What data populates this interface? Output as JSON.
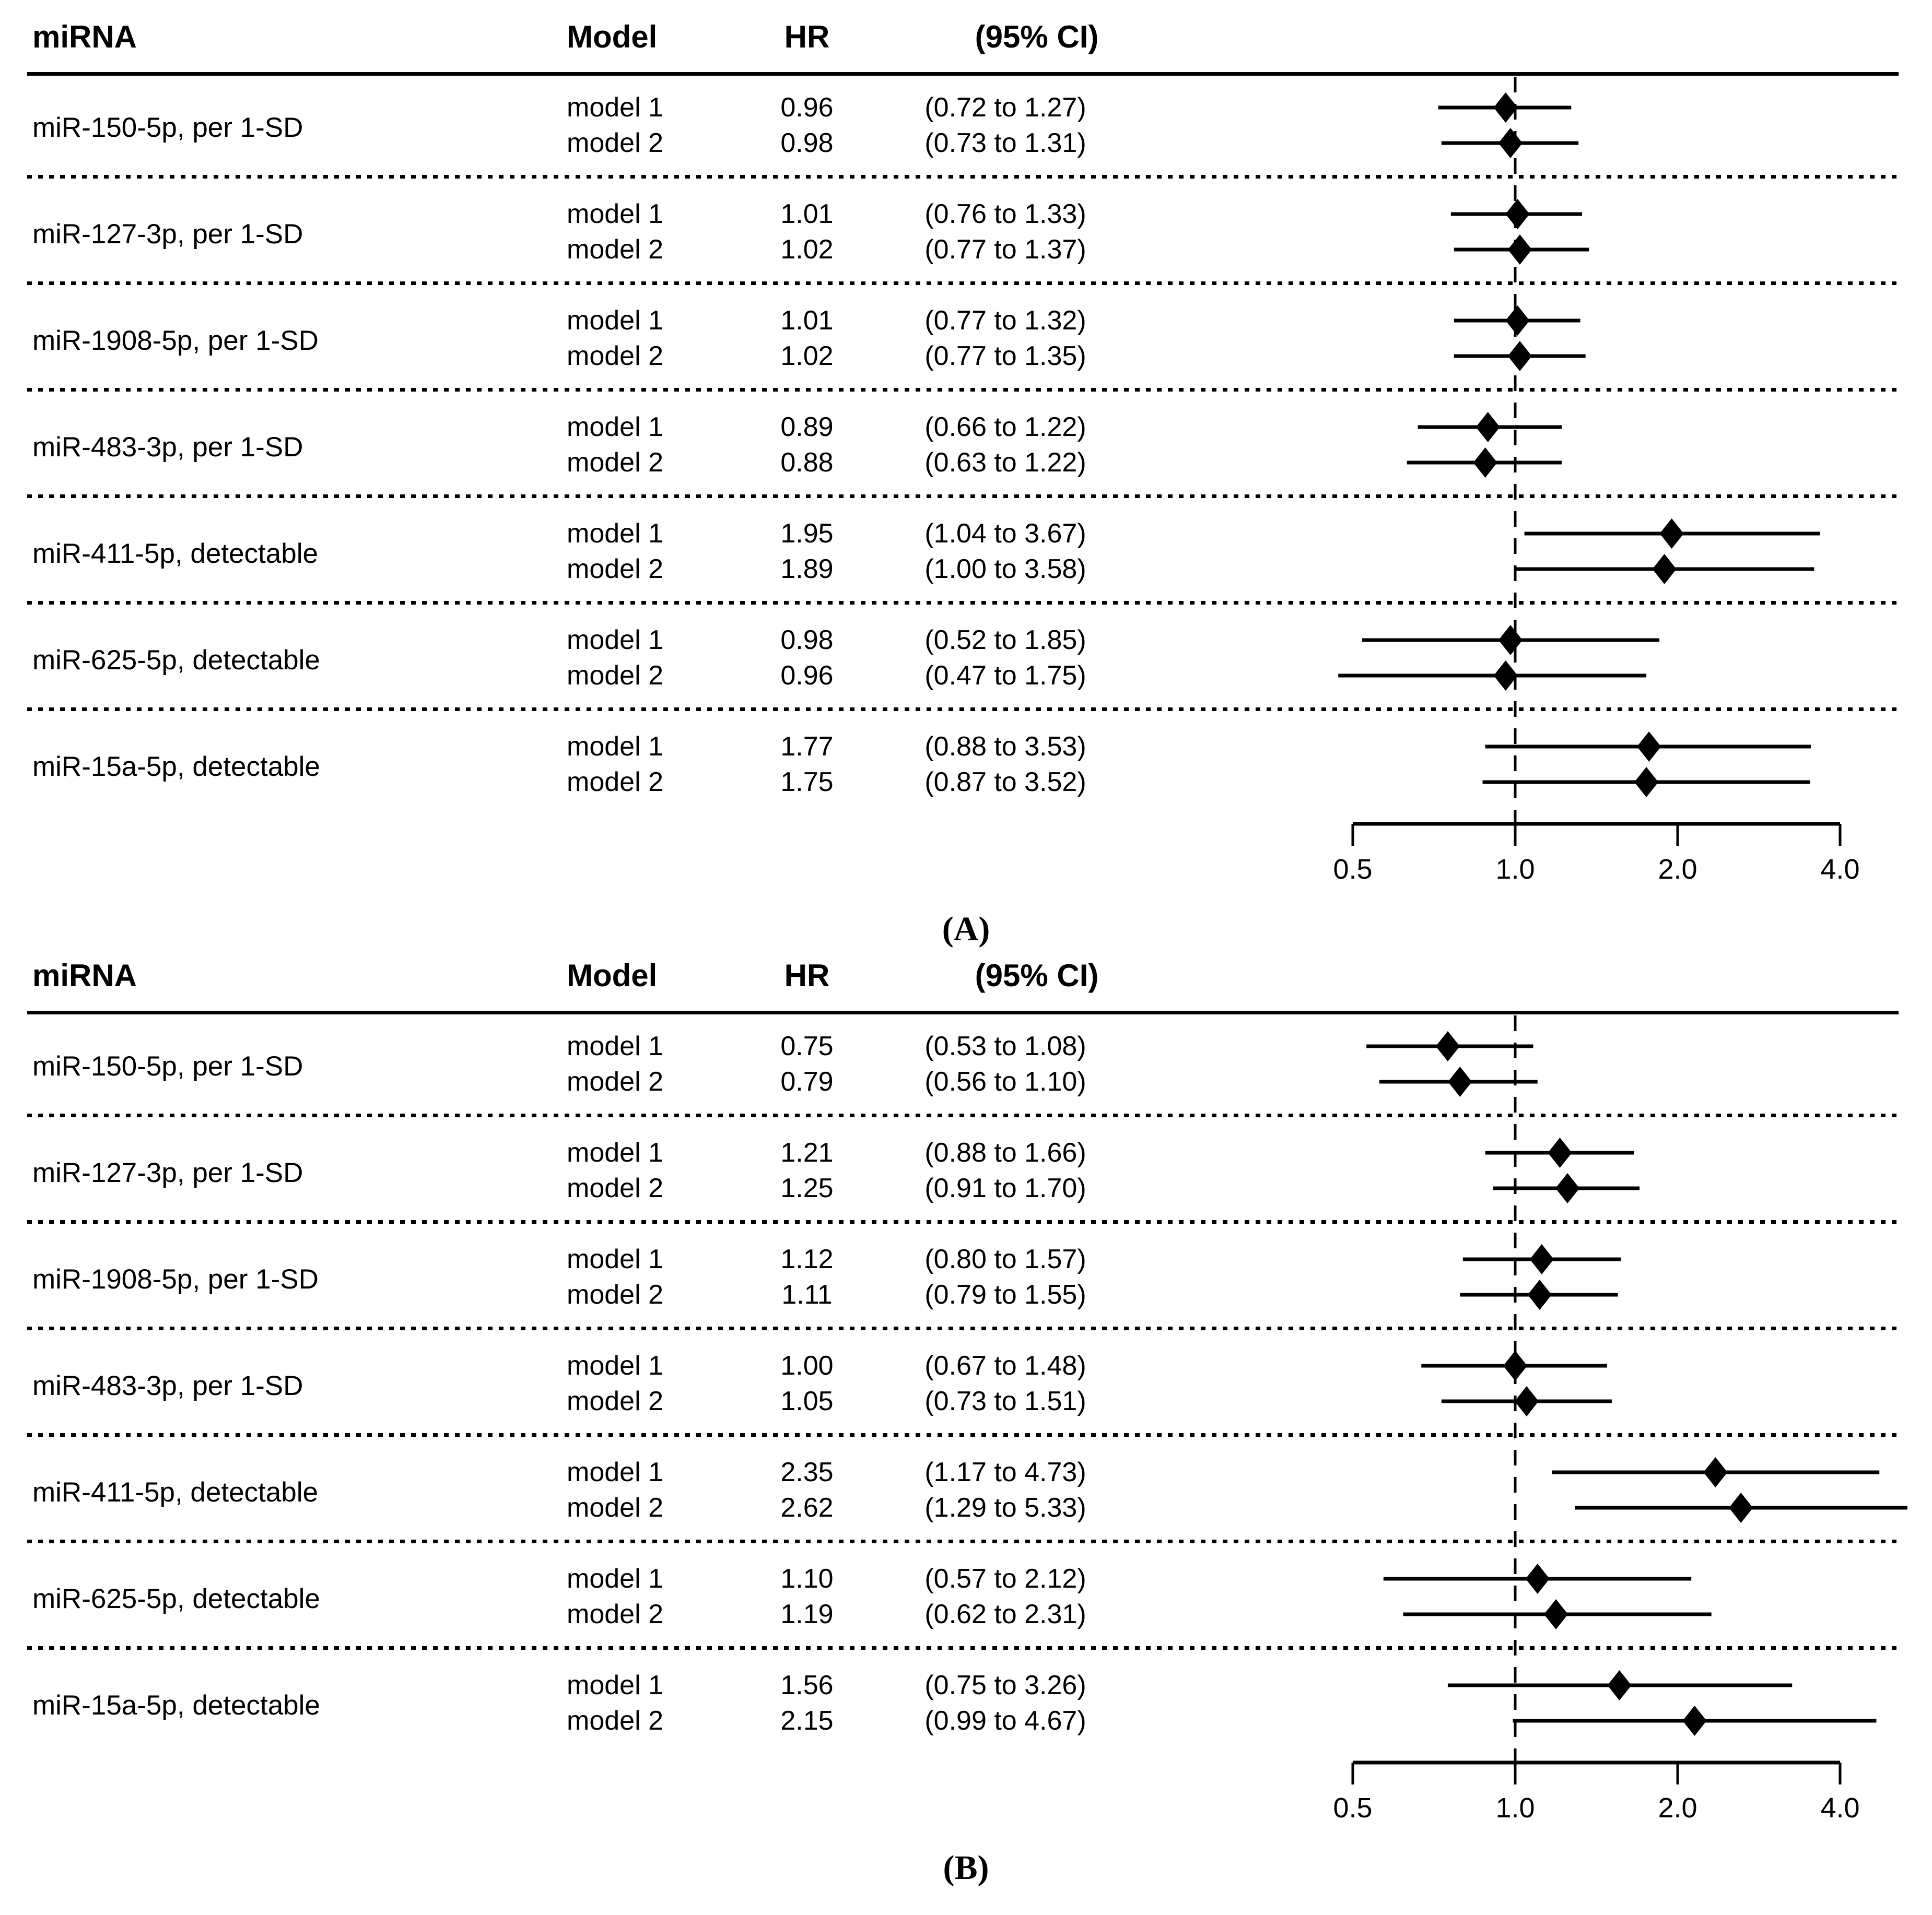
{
  "colors": {
    "ink": "#000000",
    "background": "#ffffff"
  },
  "columns": {
    "mirna": "miRNA",
    "model": "Model",
    "hr": "HR",
    "ci": "(95% CI)"
  },
  "axis": {
    "scale": "log2",
    "ticks": [
      0.5,
      1.0,
      2.0,
      4.0
    ],
    "tick_labels": [
      "0.5",
      "1.0",
      "2.0",
      "4.0"
    ],
    "reference_line": 1.0
  },
  "chart_data": {
    "type": "forest",
    "title": "",
    "xlabel": "",
    "xlim": [
      0.5,
      4.0
    ],
    "panels": [
      {
        "label": "(A)",
        "groups": [
          {
            "mirna": "miR-150-5p, per 1-SD",
            "models": [
              {
                "model": "model 1",
                "hr": 0.96,
                "hr_text": "0.96",
                "lo": 0.72,
                "hi": 1.27,
                "ci_text": "(0.72 to 1.27)"
              },
              {
                "model": "model 2",
                "hr": 0.98,
                "hr_text": "0.98",
                "lo": 0.73,
                "hi": 1.31,
                "ci_text": "(0.73 to 1.31)"
              }
            ]
          },
          {
            "mirna": "miR-127-3p, per 1-SD",
            "models": [
              {
                "model": "model 1",
                "hr": 1.01,
                "hr_text": "1.01",
                "lo": 0.76,
                "hi": 1.33,
                "ci_text": "(0.76 to 1.33)"
              },
              {
                "model": "model 2",
                "hr": 1.02,
                "hr_text": "1.02",
                "lo": 0.77,
                "hi": 1.37,
                "ci_text": "(0.77 to 1.37)"
              }
            ]
          },
          {
            "mirna": "miR-1908-5p, per 1-SD",
            "models": [
              {
                "model": "model 1",
                "hr": 1.01,
                "hr_text": "1.01",
                "lo": 0.77,
                "hi": 1.32,
                "ci_text": "(0.77 to 1.32)"
              },
              {
                "model": "model 2",
                "hr": 1.02,
                "hr_text": "1.02",
                "lo": 0.77,
                "hi": 1.35,
                "ci_text": "(0.77 to 1.35)"
              }
            ]
          },
          {
            "mirna": "miR-483-3p, per 1-SD",
            "models": [
              {
                "model": "model 1",
                "hr": 0.89,
                "hr_text": "0.89",
                "lo": 0.66,
                "hi": 1.22,
                "ci_text": "(0.66 to 1.22)"
              },
              {
                "model": "model 2",
                "hr": 0.88,
                "hr_text": "0.88",
                "lo": 0.63,
                "hi": 1.22,
                "ci_text": "(0.63 to 1.22)"
              }
            ]
          },
          {
            "mirna": "miR-411-5p, detectable",
            "models": [
              {
                "model": "model 1",
                "hr": 1.95,
                "hr_text": "1.95",
                "lo": 1.04,
                "hi": 3.67,
                "ci_text": "(1.04 to 3.67)"
              },
              {
                "model": "model 2",
                "hr": 1.89,
                "hr_text": "1.89",
                "lo": 1.0,
                "hi": 3.58,
                "ci_text": "(1.00 to 3.58)"
              }
            ]
          },
          {
            "mirna": "miR-625-5p, detectable",
            "models": [
              {
                "model": "model 1",
                "hr": 0.98,
                "hr_text": "0.98",
                "lo": 0.52,
                "hi": 1.85,
                "ci_text": "(0.52 to 1.85)"
              },
              {
                "model": "model 2",
                "hr": 0.96,
                "hr_text": "0.96",
                "lo": 0.47,
                "hi": 1.75,
                "ci_text": "(0.47 to 1.75)"
              }
            ]
          },
          {
            "mirna": "miR-15a-5p, detectable",
            "models": [
              {
                "model": "model 1",
                "hr": 1.77,
                "hr_text": "1.77",
                "lo": 0.88,
                "hi": 3.53,
                "ci_text": "(0.88 to 3.53)"
              },
              {
                "model": "model 2",
                "hr": 1.75,
                "hr_text": "1.75",
                "lo": 0.87,
                "hi": 3.52,
                "ci_text": "(0.87 to 3.52)"
              }
            ]
          }
        ]
      },
      {
        "label": "(B)",
        "groups": [
          {
            "mirna": "miR-150-5p, per 1-SD",
            "models": [
              {
                "model": "model 1",
                "hr": 0.75,
                "hr_text": "0.75",
                "lo": 0.53,
                "hi": 1.08,
                "ci_text": "(0.53 to 1.08)"
              },
              {
                "model": "model 2",
                "hr": 0.79,
                "hr_text": "0.79",
                "lo": 0.56,
                "hi": 1.1,
                "ci_text": "(0.56 to 1.10)"
              }
            ]
          },
          {
            "mirna": "miR-127-3p, per 1-SD",
            "models": [
              {
                "model": "model 1",
                "hr": 1.21,
                "hr_text": "1.21",
                "lo": 0.88,
                "hi": 1.66,
                "ci_text": "(0.88 to 1.66)"
              },
              {
                "model": "model 2",
                "hr": 1.25,
                "hr_text": "1.25",
                "lo": 0.91,
                "hi": 1.7,
                "ci_text": "(0.91 to 1.70)"
              }
            ]
          },
          {
            "mirna": "miR-1908-5p, per 1-SD",
            "models": [
              {
                "model": "model 1",
                "hr": 1.12,
                "hr_text": "1.12",
                "lo": 0.8,
                "hi": 1.57,
                "ci_text": "(0.80 to 1.57)"
              },
              {
                "model": "model 2",
                "hr": 1.11,
                "hr_text": "1.11",
                "lo": 0.79,
                "hi": 1.55,
                "ci_text": "(0.79 to 1.55)"
              }
            ]
          },
          {
            "mirna": "miR-483-3p, per 1-SD",
            "models": [
              {
                "model": "model 1",
                "hr": 1.0,
                "hr_text": "1.00",
                "lo": 0.67,
                "hi": 1.48,
                "ci_text": "(0.67 to 1.48)"
              },
              {
                "model": "model 2",
                "hr": 1.05,
                "hr_text": "1.05",
                "lo": 0.73,
                "hi": 1.51,
                "ci_text": "(0.73 to 1.51)"
              }
            ]
          },
          {
            "mirna": "miR-411-5p, detectable",
            "models": [
              {
                "model": "model 1",
                "hr": 2.35,
                "hr_text": "2.35",
                "lo": 1.17,
                "hi": 4.73,
                "ci_text": "(1.17 to 4.73)"
              },
              {
                "model": "model 2",
                "hr": 2.62,
                "hr_text": "2.62",
                "lo": 1.29,
                "hi": 5.33,
                "ci_text": "(1.29 to 5.33)"
              }
            ]
          },
          {
            "mirna": "miR-625-5p, detectable",
            "models": [
              {
                "model": "model 1",
                "hr": 1.1,
                "hr_text": "1.10",
                "lo": 0.57,
                "hi": 2.12,
                "ci_text": "(0.57 to 2.12)"
              },
              {
                "model": "model 2",
                "hr": 1.19,
                "hr_text": "1.19",
                "lo": 0.62,
                "hi": 2.31,
                "ci_text": "(0.62 to 2.31)"
              }
            ]
          },
          {
            "mirna": "miR-15a-5p, detectable",
            "models": [
              {
                "model": "model 1",
                "hr": 1.56,
                "hr_text": "1.56",
                "lo": 0.75,
                "hi": 3.26,
                "ci_text": "(0.75 to 3.26)"
              },
              {
                "model": "model 2",
                "hr": 2.15,
                "hr_text": "2.15",
                "lo": 0.99,
                "hi": 4.67,
                "ci_text": "(0.99 to 4.67)"
              }
            ]
          }
        ]
      }
    ]
  }
}
